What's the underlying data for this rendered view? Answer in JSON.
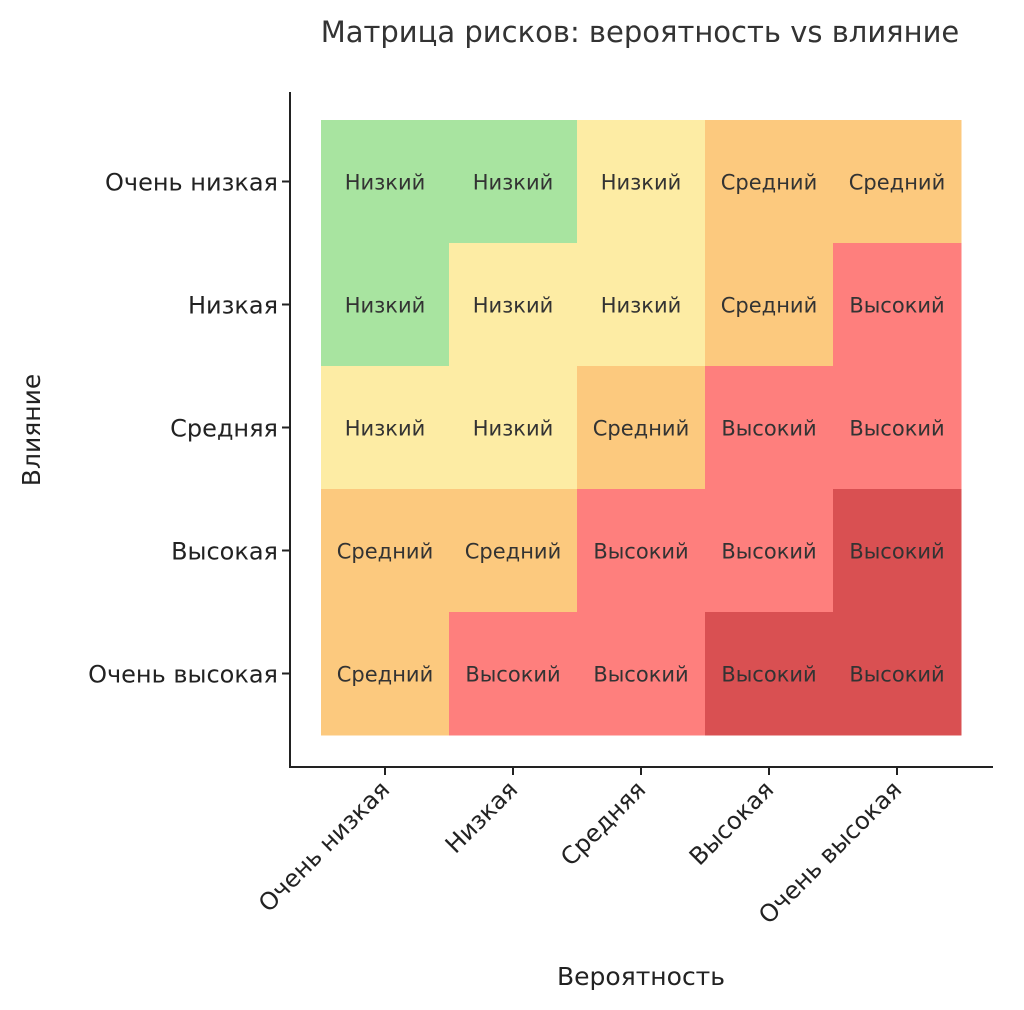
{
  "chart_data": {
    "type": "heatmap",
    "title": "Матрица рисков: вероятность vs влияние",
    "xlabel": "Вероятность",
    "ylabel": "Влияние",
    "x_categories": [
      "Очень низкая",
      "Низкая",
      "Средняя",
      "Высокая",
      "Очень высокая"
    ],
    "y_categories": [
      "Очень низкая",
      "Низкая",
      "Средняя",
      "Высокая",
      "Очень высокая"
    ],
    "levels": {
      "Низкий": "#a8e4a0",
      "Низкий_yellow": "#fdeca4",
      "Средний": "#fcc97e",
      "Высокий": "#fe7f7d",
      "Высокий_dark": "#d95052"
    },
    "cells": [
      [
        "Низкий",
        "Низкий",
        "Низкий",
        "Средний",
        "Средний"
      ],
      [
        "Низкий",
        "Низкий",
        "Низкий",
        "Средний",
        "Высокий"
      ],
      [
        "Низкий",
        "Низкий",
        "Средний",
        "Высокий",
        "Высокий"
      ],
      [
        "Средний",
        "Средний",
        "Высокий",
        "Высокий",
        "Высокий"
      ],
      [
        "Средний",
        "Высокий",
        "Высокий",
        "Высокий",
        "Высокий"
      ]
    ],
    "cell_colors": [
      [
        "#a8e4a0",
        "#a8e4a0",
        "#fdeca4",
        "#fcc97e",
        "#fcc97e"
      ],
      [
        "#a8e4a0",
        "#fdeca4",
        "#fdeca4",
        "#fcc97e",
        "#fe7f7d"
      ],
      [
        "#fdeca4",
        "#fdeca4",
        "#fcc97e",
        "#fe7f7d",
        "#fe7f7d"
      ],
      [
        "#fcc97e",
        "#fcc97e",
        "#fe7f7d",
        "#fe7f7d",
        "#d95052"
      ],
      [
        "#fcc97e",
        "#fe7f7d",
        "#fe7f7d",
        "#d95052",
        "#d95052"
      ]
    ],
    "grid": false,
    "legend": "none"
  }
}
